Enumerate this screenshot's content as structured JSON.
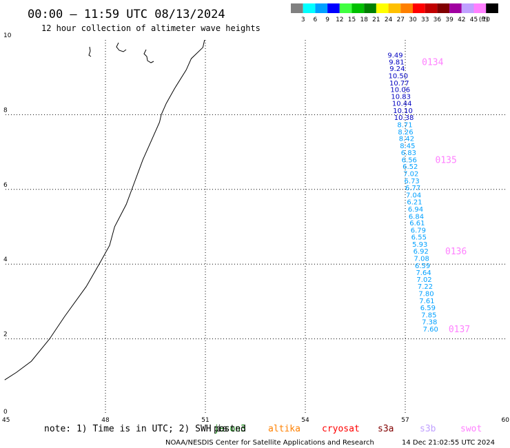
{
  "header": {
    "title": "00:00 – 11:59 UTC 08/13/2024",
    "subtitle": "12 hour collection of altimeter wave heights"
  },
  "colorbar": {
    "colors": [
      "#808080",
      "#00ffff",
      "#00a0ff",
      "#0000ff",
      "#40ff40",
      "#00c000",
      "#008000",
      "#ffff00",
      "#ffc000",
      "#ff8000",
      "#ff0000",
      "#c00000",
      "#800000",
      "#a000a0",
      "#c0a0ff",
      "#ff80ff",
      "#000000"
    ],
    "labels": [
      "3",
      "6",
      "9",
      "12",
      "15",
      "18",
      "21",
      "24",
      "27",
      "30",
      "33",
      "36",
      "39",
      "42",
      "45",
      "70",
      "(ft)"
    ]
  },
  "chart_data": {
    "type": "scatter",
    "title": "00:00 – 11:59 UTC 08/13/2024",
    "subtitle": "12 hour collection of altimeter wave heights",
    "xlim": [
      45,
      60
    ],
    "ylim": [
      0,
      10
    ],
    "x_ticks": [
      "45",
      "48",
      "51",
      "54",
      "57",
      "60"
    ],
    "y_ticks": [
      "0",
      "2",
      "4",
      "6",
      "8",
      "10"
    ],
    "grid": true,
    "series": [
      {
        "name": "jason3",
        "color_low": "#00a0ff",
        "color_high": "#0000c0",
        "points": [
          {
            "x": 56.7,
            "y": 9.6,
            "label": "9.49"
          },
          {
            "x": 56.74,
            "y": 9.42,
            "label": "9.81"
          },
          {
            "x": 56.76,
            "y": 9.24,
            "label": "9.24"
          },
          {
            "x": 56.79,
            "y": 9.05,
            "label": "10.50"
          },
          {
            "x": 56.82,
            "y": 8.86,
            "label": "10.77"
          },
          {
            "x": 56.85,
            "y": 8.68,
            "label": "10.06"
          },
          {
            "x": 56.87,
            "y": 8.5,
            "label": "10.83"
          },
          {
            "x": 56.9,
            "y": 8.31,
            "label": "10.44"
          },
          {
            "x": 56.93,
            "y": 8.12,
            "label": "10.10"
          },
          {
            "x": 56.96,
            "y": 7.93,
            "label": "10.38"
          },
          {
            "x": 56.99,
            "y": 7.74,
            "label": "8.71"
          },
          {
            "x": 57.01,
            "y": 7.55,
            "label": "8.26"
          },
          {
            "x": 57.04,
            "y": 7.37,
            "label": "8.42"
          },
          {
            "x": 57.07,
            "y": 7.18,
            "label": "8.45"
          },
          {
            "x": 57.1,
            "y": 6.99,
            "label": "6.83"
          },
          {
            "x": 57.12,
            "y": 6.8,
            "label": "6.56"
          },
          {
            "x": 57.15,
            "y": 6.62,
            "label": "6.52"
          },
          {
            "x": 57.17,
            "y": 6.43,
            "label": "7.02"
          },
          {
            "x": 57.2,
            "y": 6.24,
            "label": "6.73"
          },
          {
            "x": 57.23,
            "y": 6.05,
            "label": "6.77"
          },
          {
            "x": 57.25,
            "y": 5.86,
            "label": "7.04"
          },
          {
            "x": 57.28,
            "y": 5.67,
            "label": "6.21"
          },
          {
            "x": 57.31,
            "y": 5.48,
            "label": "6.94"
          },
          {
            "x": 57.33,
            "y": 5.29,
            "label": "6.84"
          },
          {
            "x": 57.36,
            "y": 5.11,
            "label": "6.61"
          },
          {
            "x": 57.39,
            "y": 4.92,
            "label": "6.79"
          },
          {
            "x": 57.41,
            "y": 4.73,
            "label": "6.55"
          },
          {
            "x": 57.44,
            "y": 4.54,
            "label": "5.93"
          },
          {
            "x": 57.47,
            "y": 4.35,
            "label": "6.92"
          },
          {
            "x": 57.49,
            "y": 4.16,
            "label": "7.08"
          },
          {
            "x": 57.52,
            "y": 3.97,
            "label": "6.59"
          },
          {
            "x": 57.55,
            "y": 3.78,
            "label": "7.64"
          },
          {
            "x": 57.57,
            "y": 3.6,
            "label": "7.02"
          },
          {
            "x": 57.6,
            "y": 3.41,
            "label": "7.22"
          },
          {
            "x": 57.63,
            "y": 3.22,
            "label": "7.80"
          },
          {
            "x": 57.65,
            "y": 3.03,
            "label": "7.61"
          },
          {
            "x": 57.68,
            "y": 2.84,
            "label": "6.59"
          },
          {
            "x": 57.71,
            "y": 2.65,
            "label": "7.85"
          },
          {
            "x": 57.73,
            "y": 2.46,
            "label": "7.38"
          },
          {
            "x": 57.76,
            "y": 2.27,
            "label": "7.60"
          }
        ]
      }
    ],
    "pass_labels": [
      {
        "text": "0134",
        "x": 57.5,
        "y": 9.42
      },
      {
        "text": "0135",
        "x": 57.9,
        "y": 6.8
      },
      {
        "text": "0136",
        "x": 58.2,
        "y": 4.35
      },
      {
        "text": "0137",
        "x": 58.3,
        "y": 2.27
      }
    ],
    "satellites": [
      {
        "name": "jason3",
        "color": "#008000"
      },
      {
        "name": "altika",
        "color": "#ff8000"
      },
      {
        "name": "cryosat",
        "color": "#ff0000"
      },
      {
        "name": "s3a",
        "color": "#800000"
      },
      {
        "name": "s3b",
        "color": "#c0a0ff"
      },
      {
        "name": "swot",
        "color": "#ff80ff"
      }
    ],
    "jason_overprint": "posted"
  },
  "footer": {
    "note": "note: 1) Time is in UTC; 2) SWH is",
    "credit": "NOAA/NESDIS Center for Satellite Applications and Research",
    "timestamp": "14 Dec 21:02:55 UTC 2024"
  }
}
